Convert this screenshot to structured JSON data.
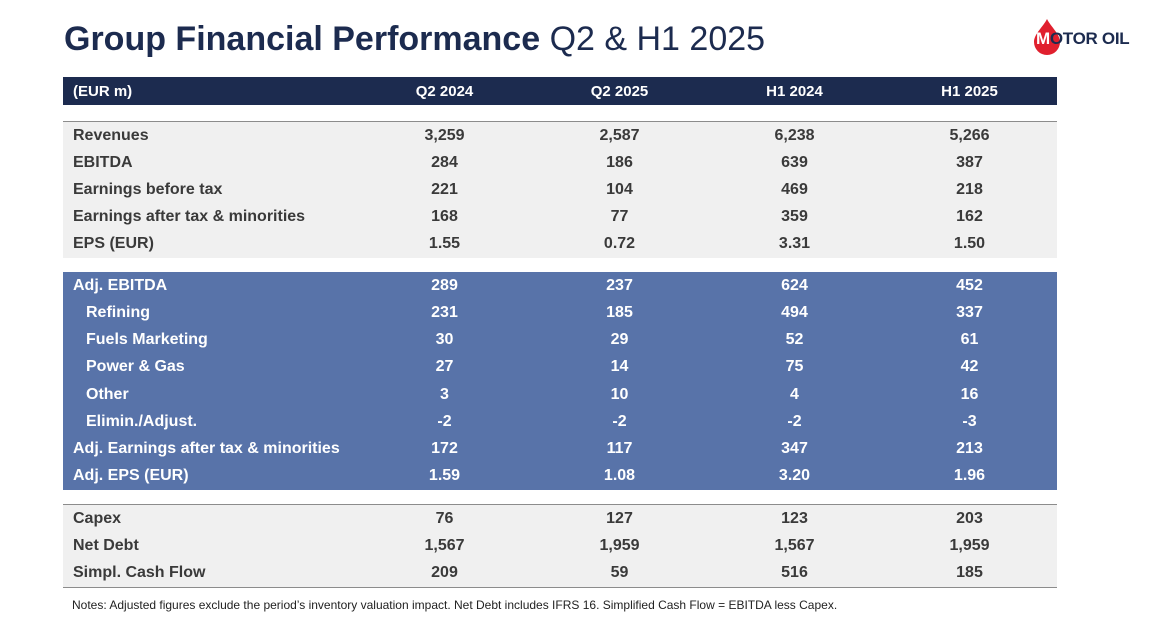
{
  "title": {
    "bold": "Group Financial Performance",
    "light": "Q2 & H1 2025"
  },
  "logo": {
    "text_initial": "M",
    "text_rest": "OTOR OIL",
    "drop_color": "#e0202e"
  },
  "table": {
    "headers": [
      "(EUR m)",
      "Q2 2024",
      "Q2 2025",
      "H1 2024",
      "H1 2025"
    ],
    "group1": [
      [
        "Revenues",
        "3,259",
        "2,587",
        "6,238",
        "5,266"
      ],
      [
        "EBITDA",
        "284",
        "186",
        "639",
        "387"
      ],
      [
        "Earnings before tax",
        "221",
        "104",
        "469",
        "218"
      ],
      [
        "Earnings after tax & minorities",
        "168",
        "77",
        "359",
        "162"
      ],
      [
        "EPS (EUR)",
        "1.55",
        "0.72",
        "3.31",
        "1.50"
      ]
    ],
    "group2": [
      [
        "Adj. EBITDA",
        "289",
        "237",
        "624",
        "452"
      ],
      [
        "Refining",
        "231",
        "185",
        "494",
        "337"
      ],
      [
        "Fuels Marketing",
        "30",
        "29",
        "52",
        "61"
      ],
      [
        "Power & Gas",
        "27",
        "14",
        "75",
        "42"
      ],
      [
        "Other",
        "3",
        "10",
        "4",
        "16"
      ],
      [
        "Elimin./Adjust.",
        "-2",
        "-2",
        "-2",
        "-3"
      ],
      [
        "Adj. Earnings after tax & minorities",
        "172",
        "117",
        "347",
        "213"
      ],
      [
        "Adj. EPS (EUR)",
        "1.59",
        "1.08",
        "3.20",
        "1.96"
      ]
    ],
    "group3": [
      [
        "Capex",
        "76",
        "127",
        "123",
        "203"
      ],
      [
        "Net Debt",
        "1,567",
        "1,959",
        "1,567",
        "1,959"
      ],
      [
        "Simpl. Cash Flow",
        "209",
        "59",
        "516",
        "185"
      ]
    ]
  },
  "notes": "Notes: Adjusted figures exclude the period’s inventory valuation impact. Net Debt includes IFRS 16. Simplified Cash Flow = EBITDA less Capex.",
  "colors": {
    "header_bg": "#1c2b4f",
    "highlight_bg": "#5873a9",
    "row_bg": "#f0f0f0",
    "title": "#1c2b4f"
  }
}
